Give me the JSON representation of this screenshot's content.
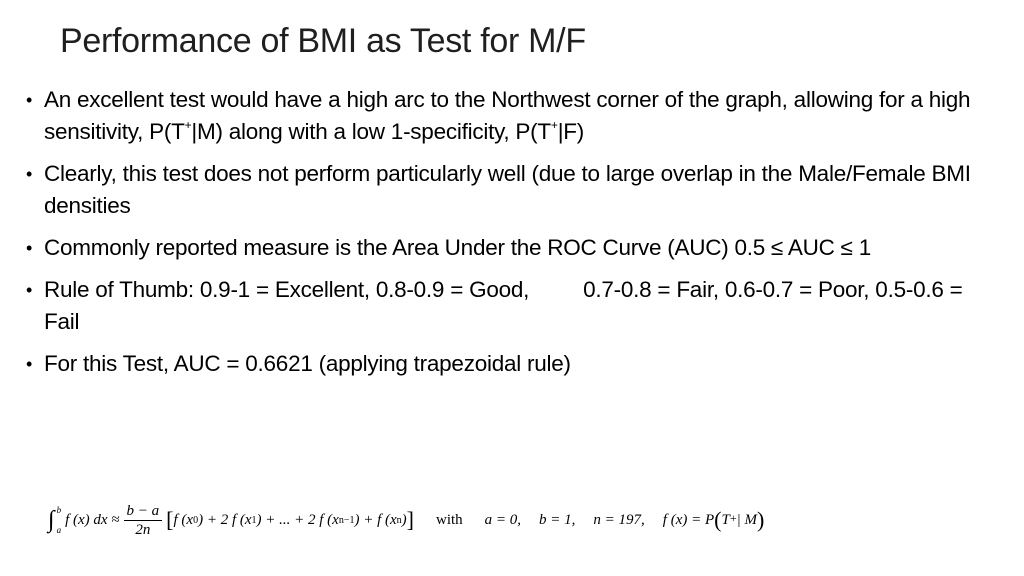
{
  "slide": {
    "title": "Performance of BMI as Test for M/F",
    "bullet_char": "•",
    "bullets": {
      "b1_part1": "An excellent test would have a high arc to the Northwest corner of the graph, allowing for a high sensitivity, P(T",
      "b1_sup1": "+",
      "b1_part2": "|M) along with a low 1-specificity, P(T",
      "b1_sup2": "+",
      "b1_part3": "|F)",
      "b2": "Clearly, this test does not perform particularly well (due to large overlap in the Male/Female BMI densities",
      "b3": "Commonly reported measure is the Area Under the ROC Curve (AUC)  0.5 ≤ AUC ≤ 1",
      "b4_part1": "Rule of Thumb: 0.9-1 = Excellent, 0.8-0.9 = Good,",
      "b4_part2": "0.7-0.8 = Fair, 0.6-0.7 = Poor, 0.5-0.6 = Fail",
      "b5": "For this Test, AUC = 0.6621 (applying trapezoidal rule)"
    },
    "formula": {
      "integral_sign": "∫",
      "upper_limit": "b",
      "lower_limit": "a",
      "integrand": "f (x) dx ≈",
      "frac_num": "b − a",
      "frac_den": "2n",
      "bracket_open": "[",
      "sum_text_1": "f (x",
      "sub_0": "0",
      "sum_text_2": ") + 2 f (x",
      "sub_1": "1",
      "sum_text_3": ") + ... + 2 f (x",
      "sub_n1": "n−1",
      "sum_text_4": ") + f (x",
      "sub_n": "n",
      "sum_text_5": ")",
      "bracket_close": "]",
      "with_word": "with",
      "param_a": "a = 0,",
      "param_b": "b = 1,",
      "param_n": "n = 197,",
      "def_lhs": "f (x) = P",
      "def_paren_open": "(",
      "def_T": "T",
      "def_sup": "+",
      "def_rest": " | M",
      "def_paren_close": ")"
    }
  }
}
